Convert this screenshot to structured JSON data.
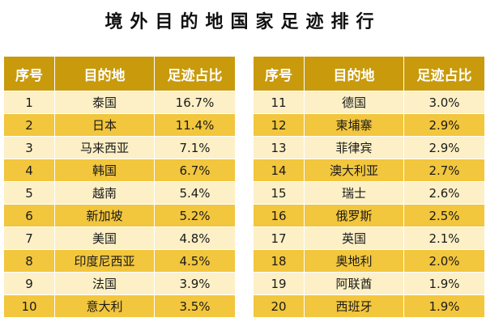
{
  "title": "境外目的地国家足迹排行",
  "headers": [
    "序号",
    "目的地",
    "足迹占比"
  ],
  "colors": {
    "header_bg": "#c99a0c",
    "row_light": "#fdf0c6",
    "row_dark": "#f2c63d"
  },
  "left_rows": [
    {
      "rank": "1",
      "destination": "泰国",
      "share": "16.7%"
    },
    {
      "rank": "2",
      "destination": "日本",
      "share": "11.4%"
    },
    {
      "rank": "3",
      "destination": "马来西亚",
      "share": "7.1%"
    },
    {
      "rank": "4",
      "destination": "韩国",
      "share": "6.7%"
    },
    {
      "rank": "5",
      "destination": "越南",
      "share": "5.4%"
    },
    {
      "rank": "6",
      "destination": "新加坡",
      "share": "5.2%"
    },
    {
      "rank": "7",
      "destination": "美国",
      "share": "4.8%"
    },
    {
      "rank": "8",
      "destination": "印度尼西亚",
      "share": "4.5%"
    },
    {
      "rank": "9",
      "destination": "法国",
      "share": "3.9%"
    },
    {
      "rank": "10",
      "destination": "意大利",
      "share": "3.5%"
    }
  ],
  "right_rows": [
    {
      "rank": "11",
      "destination": "德国",
      "share": "3.0%"
    },
    {
      "rank": "12",
      "destination": "柬埔寨",
      "share": "2.9%"
    },
    {
      "rank": "13",
      "destination": "菲律宾",
      "share": "2.9%"
    },
    {
      "rank": "14",
      "destination": "澳大利亚",
      "share": "2.7%"
    },
    {
      "rank": "15",
      "destination": "瑞士",
      "share": "2.6%"
    },
    {
      "rank": "16",
      "destination": "俄罗斯",
      "share": "2.5%"
    },
    {
      "rank": "17",
      "destination": "英国",
      "share": "2.1%"
    },
    {
      "rank": "18",
      "destination": "奥地利",
      "share": "2.0%"
    },
    {
      "rank": "19",
      "destination": "阿联酋",
      "share": "1.9%"
    },
    {
      "rank": "20",
      "destination": "西班牙",
      "share": "1.9%"
    }
  ]
}
